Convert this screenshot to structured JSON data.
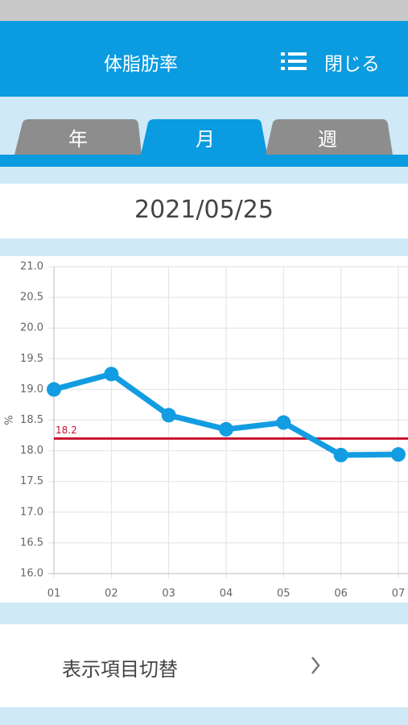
{
  "header": {
    "title": "体脂肪率",
    "close": "閉じる"
  },
  "tabs": [
    "年",
    "月",
    "週"
  ],
  "date": "2021/05/25",
  "chart_data": {
    "type": "line",
    "categories": [
      "01",
      "02",
      "03",
      "04",
      "05",
      "06",
      "07"
    ],
    "series": [
      {
        "name": "体脂肪率",
        "color": "#129de2",
        "values": [
          19.0,
          19.25,
          18.58,
          18.35,
          18.46,
          17.93,
          17.94
        ]
      }
    ],
    "ylabel": "%",
    "ylim": [
      16,
      21
    ],
    "yticks": [
      {
        "value": 16,
        "label": "16.0"
      },
      {
        "value": 16.5,
        "label": "16.5"
      },
      {
        "value": 17,
        "label": "17.0"
      },
      {
        "value": 17.5,
        "label": "17.5"
      },
      {
        "value": 18,
        "label": "18.0"
      },
      {
        "value": 18.5,
        "label": "18.5"
      },
      {
        "value": 19,
        "label": "19.0"
      },
      {
        "value": 19.5,
        "label": "19.5"
      },
      {
        "value": 20,
        "label": "20.0"
      },
      {
        "value": 20.5,
        "label": "20.5"
      },
      {
        "value": 21,
        "label": "21.0"
      }
    ],
    "reference": {
      "value": 18.2,
      "label": "18.2",
      "color": "#c8102e"
    },
    "grid": true
  },
  "footer": {
    "button": "表示項目切替"
  }
}
